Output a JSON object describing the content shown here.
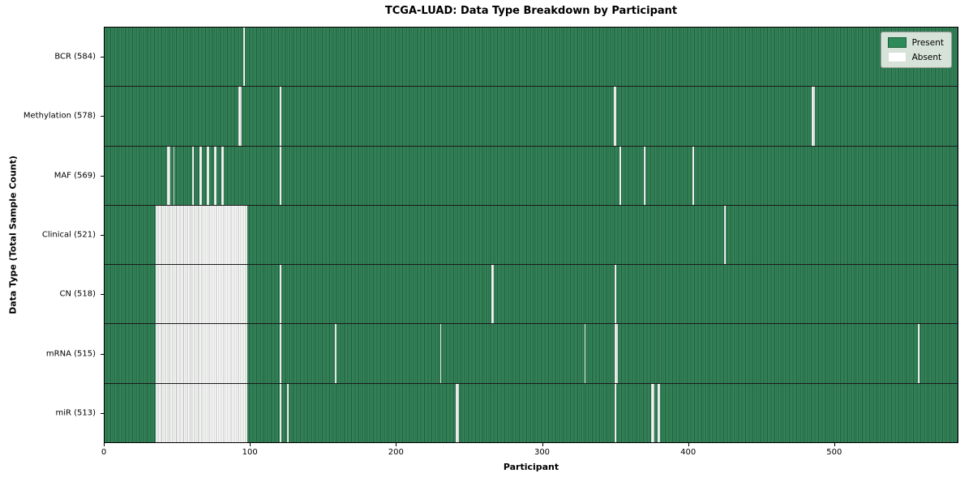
{
  "title": "TCGA-LUAD: Data Type Breakdown by Participant",
  "axes": {
    "xlabel": "Participant",
    "ylabel": "Data Type (Total Sample Count)"
  },
  "legend": {
    "present_label": "Present",
    "absent_label": "Absent"
  },
  "colors": {
    "present_light": "#37875c",
    "present_dark": "#1f5d3d",
    "absent_light": "#fafafa",
    "absent_dark": "#b9bdb9",
    "row_divider": "#1a1a1a",
    "plot_border": "#000000",
    "legend_present_swatch": "#2e8b57"
  },
  "chart_data": {
    "type": "heatmap",
    "title": "TCGA-LUAD: Data Type Breakdown by Participant",
    "xlabel": "Participant",
    "ylabel": "Data Type (Total Sample Count)",
    "legend": [
      "Present",
      "Absent"
    ],
    "legend_position": "upper right",
    "n_participants": 585,
    "x_ticks": [
      0,
      100,
      200,
      300,
      400,
      500
    ],
    "xlim": [
      0,
      585
    ],
    "grid": false,
    "rows": [
      {
        "label": "BCR (584)",
        "data_type": "BCR",
        "total_samples": 584,
        "absent_ranges": [
          [
            95,
            1
          ]
        ]
      },
      {
        "label": "Methylation (578)",
        "data_type": "Methylation",
        "total_samples": 578,
        "absent_ranges": [
          [
            92,
            2
          ],
          [
            120,
            1
          ],
          [
            349,
            2
          ],
          [
            485,
            2
          ]
        ]
      },
      {
        "label": "MAF (569)",
        "data_type": "MAF",
        "total_samples": 569,
        "absent_ranges": [
          [
            43,
            2
          ],
          [
            47,
            1
          ],
          [
            60,
            1
          ],
          [
            65,
            2
          ],
          [
            70,
            2
          ],
          [
            75,
            2
          ],
          [
            80,
            2
          ],
          [
            120,
            1
          ],
          [
            353,
            1
          ],
          [
            370,
            1
          ],
          [
            403,
            1
          ]
        ]
      },
      {
        "label": "Clinical (521)",
        "data_type": "Clinical",
        "total_samples": 521,
        "absent_ranges": [
          [
            35,
            63
          ],
          [
            425,
            1
          ]
        ]
      },
      {
        "label": "CN (518)",
        "data_type": "CN",
        "total_samples": 518,
        "absent_ranges": [
          [
            35,
            63
          ],
          [
            120,
            1
          ],
          [
            265,
            2
          ],
          [
            350,
            1
          ]
        ]
      },
      {
        "label": "mRNA (515)",
        "data_type": "mRNA",
        "total_samples": 515,
        "absent_ranges": [
          [
            35,
            63
          ],
          [
            120,
            1
          ],
          [
            158,
            1
          ],
          [
            230,
            1
          ],
          [
            329,
            1
          ],
          [
            350,
            2
          ],
          [
            558,
            1
          ]
        ]
      },
      {
        "label": "miR (513)",
        "data_type": "miR",
        "total_samples": 513,
        "absent_ranges": [
          [
            35,
            63
          ],
          [
            120,
            1
          ],
          [
            125,
            1
          ],
          [
            241,
            2
          ],
          [
            350,
            1
          ],
          [
            375,
            2
          ],
          [
            379,
            2
          ]
        ]
      }
    ]
  }
}
